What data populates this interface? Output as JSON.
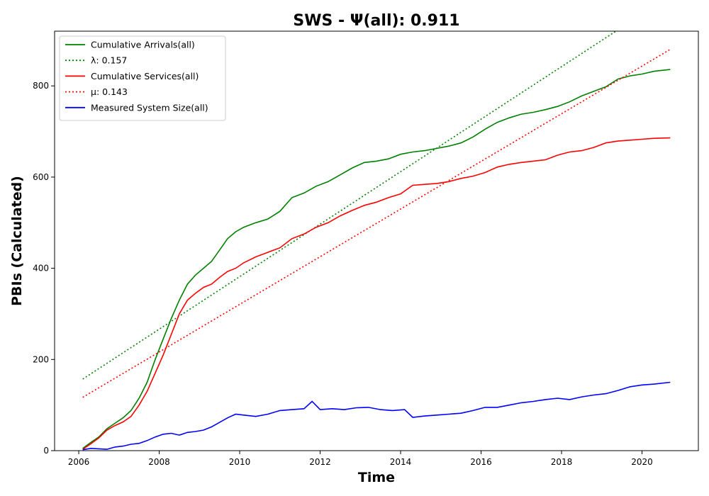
{
  "chart_data": {
    "type": "line",
    "title": "SWS -  Ψ(all): 0.911",
    "xlabel": "Time",
    "ylabel": "PBIs (Calculated)",
    "xlim": [
      2005.4,
      2021.4
    ],
    "ylim": [
      0,
      920
    ],
    "x_ticks": [
      2006,
      2008,
      2010,
      2012,
      2014,
      2016,
      2018,
      2020
    ],
    "y_ticks": [
      0,
      200,
      400,
      600,
      800
    ],
    "grid": false,
    "legend_position": "top-left",
    "series": [
      {
        "name": "Cumulative Arrivals(all)",
        "color": "#008000",
        "style": "solid",
        "points": [
          [
            2006.1,
            5
          ],
          [
            2006.3,
            18
          ],
          [
            2006.5,
            30
          ],
          [
            2006.7,
            48
          ],
          [
            2006.9,
            60
          ],
          [
            2007.1,
            72
          ],
          [
            2007.3,
            88
          ],
          [
            2007.5,
            115
          ],
          [
            2007.7,
            150
          ],
          [
            2007.9,
            200
          ],
          [
            2008.1,
            245
          ],
          [
            2008.3,
            290
          ],
          [
            2008.5,
            330
          ],
          [
            2008.7,
            365
          ],
          [
            2008.9,
            385
          ],
          [
            2009.1,
            400
          ],
          [
            2009.3,
            415
          ],
          [
            2009.5,
            440
          ],
          [
            2009.7,
            465
          ],
          [
            2009.9,
            480
          ],
          [
            2010.1,
            490
          ],
          [
            2010.4,
            500
          ],
          [
            2010.7,
            508
          ],
          [
            2011.0,
            525
          ],
          [
            2011.3,
            555
          ],
          [
            2011.6,
            565
          ],
          [
            2011.9,
            580
          ],
          [
            2012.2,
            590
          ],
          [
            2012.5,
            605
          ],
          [
            2012.8,
            620
          ],
          [
            2013.1,
            632
          ],
          [
            2013.4,
            635
          ],
          [
            2013.7,
            640
          ],
          [
            2014.0,
            650
          ],
          [
            2014.3,
            655
          ],
          [
            2014.6,
            658
          ],
          [
            2014.9,
            663
          ],
          [
            2015.2,
            668
          ],
          [
            2015.5,
            675
          ],
          [
            2015.8,
            688
          ],
          [
            2016.1,
            705
          ],
          [
            2016.4,
            720
          ],
          [
            2016.7,
            730
          ],
          [
            2017.0,
            738
          ],
          [
            2017.3,
            742
          ],
          [
            2017.6,
            748
          ],
          [
            2017.9,
            755
          ],
          [
            2018.2,
            765
          ],
          [
            2018.5,
            778
          ],
          [
            2018.8,
            788
          ],
          [
            2019.1,
            798
          ],
          [
            2019.4,
            815
          ],
          [
            2019.7,
            822
          ],
          [
            2020.0,
            826
          ],
          [
            2020.3,
            832
          ],
          [
            2020.7,
            836
          ]
        ]
      },
      {
        "name": "λ: 0.157",
        "color": "#008000",
        "style": "dotted",
        "points": [
          [
            2006.1,
            157
          ],
          [
            2019.35,
            920
          ]
        ]
      },
      {
        "name": "Cumulative Services(all)",
        "color": "#ff0000",
        "style": "solid",
        "points": [
          [
            2006.1,
            3
          ],
          [
            2006.3,
            15
          ],
          [
            2006.5,
            28
          ],
          [
            2006.7,
            45
          ],
          [
            2006.9,
            55
          ],
          [
            2007.1,
            63
          ],
          [
            2007.3,
            75
          ],
          [
            2007.5,
            100
          ],
          [
            2007.7,
            130
          ],
          [
            2007.9,
            170
          ],
          [
            2008.1,
            210
          ],
          [
            2008.3,
            255
          ],
          [
            2008.5,
            300
          ],
          [
            2008.7,
            330
          ],
          [
            2008.9,
            345
          ],
          [
            2009.1,
            358
          ],
          [
            2009.3,
            365
          ],
          [
            2009.5,
            380
          ],
          [
            2009.7,
            393
          ],
          [
            2009.9,
            400
          ],
          [
            2010.1,
            412
          ],
          [
            2010.4,
            425
          ],
          [
            2010.7,
            435
          ],
          [
            2011.0,
            445
          ],
          [
            2011.3,
            465
          ],
          [
            2011.6,
            475
          ],
          [
            2011.9,
            490
          ],
          [
            2012.2,
            500
          ],
          [
            2012.5,
            515
          ],
          [
            2012.8,
            527
          ],
          [
            2013.1,
            538
          ],
          [
            2013.4,
            545
          ],
          [
            2013.7,
            555
          ],
          [
            2014.0,
            563
          ],
          [
            2014.3,
            582
          ],
          [
            2014.6,
            584
          ],
          [
            2014.9,
            586
          ],
          [
            2015.2,
            590
          ],
          [
            2015.5,
            597
          ],
          [
            2015.8,
            602
          ],
          [
            2016.1,
            610
          ],
          [
            2016.4,
            622
          ],
          [
            2016.7,
            628
          ],
          [
            2017.0,
            632
          ],
          [
            2017.3,
            635
          ],
          [
            2017.6,
            638
          ],
          [
            2017.9,
            648
          ],
          [
            2018.2,
            655
          ],
          [
            2018.5,
            658
          ],
          [
            2018.8,
            665
          ],
          [
            2019.1,
            675
          ],
          [
            2019.4,
            679
          ],
          [
            2019.7,
            681
          ],
          [
            2020.0,
            683
          ],
          [
            2020.3,
            685
          ],
          [
            2020.7,
            686
          ]
        ]
      },
      {
        "name": "μ: 0.143",
        "color": "#ff0000",
        "style": "dotted",
        "points": [
          [
            2006.1,
            117
          ],
          [
            2020.7,
            880
          ]
        ]
      },
      {
        "name": "Measured System Size(all)",
        "color": "#0000ff",
        "style": "solid",
        "points": [
          [
            2006.1,
            2
          ],
          [
            2006.3,
            5
          ],
          [
            2006.5,
            4
          ],
          [
            2006.7,
            3
          ],
          [
            2006.9,
            8
          ],
          [
            2007.1,
            10
          ],
          [
            2007.3,
            14
          ],
          [
            2007.5,
            16
          ],
          [
            2007.7,
            22
          ],
          [
            2007.9,
            30
          ],
          [
            2008.1,
            36
          ],
          [
            2008.3,
            38
          ],
          [
            2008.5,
            34
          ],
          [
            2008.7,
            40
          ],
          [
            2008.9,
            42
          ],
          [
            2009.1,
            45
          ],
          [
            2009.3,
            52
          ],
          [
            2009.5,
            62
          ],
          [
            2009.7,
            72
          ],
          [
            2009.9,
            80
          ],
          [
            2010.1,
            78
          ],
          [
            2010.4,
            75
          ],
          [
            2010.7,
            80
          ],
          [
            2011.0,
            88
          ],
          [
            2011.3,
            90
          ],
          [
            2011.6,
            92
          ],
          [
            2011.8,
            108
          ],
          [
            2012.0,
            90
          ],
          [
            2012.3,
            92
          ],
          [
            2012.6,
            90
          ],
          [
            2012.9,
            94
          ],
          [
            2013.2,
            95
          ],
          [
            2013.5,
            90
          ],
          [
            2013.8,
            88
          ],
          [
            2014.1,
            90
          ],
          [
            2014.3,
            73
          ],
          [
            2014.6,
            76
          ],
          [
            2014.9,
            78
          ],
          [
            2015.2,
            80
          ],
          [
            2015.5,
            82
          ],
          [
            2015.8,
            88
          ],
          [
            2016.1,
            95
          ],
          [
            2016.4,
            95
          ],
          [
            2016.7,
            100
          ],
          [
            2017.0,
            105
          ],
          [
            2017.3,
            108
          ],
          [
            2017.6,
            112
          ],
          [
            2017.9,
            115
          ],
          [
            2018.2,
            112
          ],
          [
            2018.5,
            118
          ],
          [
            2018.8,
            122
          ],
          [
            2019.1,
            125
          ],
          [
            2019.4,
            132
          ],
          [
            2019.7,
            140
          ],
          [
            2020.0,
            144
          ],
          [
            2020.3,
            146
          ],
          [
            2020.7,
            150
          ]
        ]
      }
    ]
  }
}
